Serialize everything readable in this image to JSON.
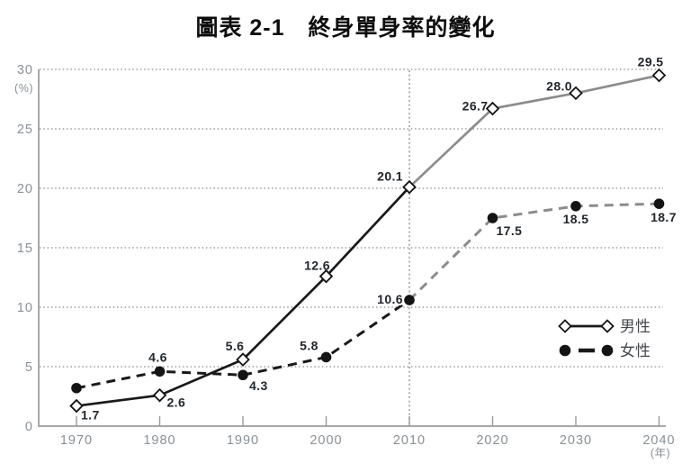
{
  "title": "圖表 2-1　終身單身率的變化",
  "chart_data": {
    "type": "line",
    "title": "圖表 2-1　終身單身率的變化",
    "x": [
      1970,
      1980,
      1990,
      2000,
      2010,
      2020,
      2030,
      2040
    ],
    "x_axis_unit_label": "(年)",
    "y_axis_unit_label": "(%)",
    "y_ticks": [
      0,
      5,
      10,
      15,
      20,
      25,
      30
    ],
    "ylim": [
      0,
      30
    ],
    "grid": "horizontal dotted gridlines at each y tick",
    "projection_divider_year": 2010,
    "series": [
      {
        "name": "男性",
        "marker": "open-diamond",
        "line_style": "solid",
        "values": [
          1.7,
          2.6,
          5.6,
          12.6,
          20.1,
          26.7,
          28.0,
          29.5
        ],
        "point_labels": [
          "1.7",
          "2.6",
          "5.6",
          "12.6",
          "20.1",
          "26.7",
          "28.0",
          "29.5"
        ]
      },
      {
        "name": "女性",
        "marker": "filled-circle",
        "line_style": "dashed",
        "values": [
          3.2,
          4.6,
          4.3,
          5.8,
          10.6,
          17.5,
          18.5,
          18.7
        ],
        "point_labels": [
          "",
          "4.6",
          "4.3",
          "5.8",
          "10.6",
          "17.5",
          "18.5",
          "18.7"
        ]
      }
    ],
    "legend": {
      "position": "right-center",
      "entries": [
        "男性",
        "女性"
      ]
    },
    "colors": {
      "actual_line": "#1a1a1a",
      "projected_line": "#8c8c8c",
      "axis": "#999999",
      "tick_label": "#8a9095",
      "grid": "#6b6b6b",
      "value_label": "#22272c",
      "legend_label": "#46494d",
      "marker_fill": "#141414",
      "background": "#ffffff"
    }
  }
}
